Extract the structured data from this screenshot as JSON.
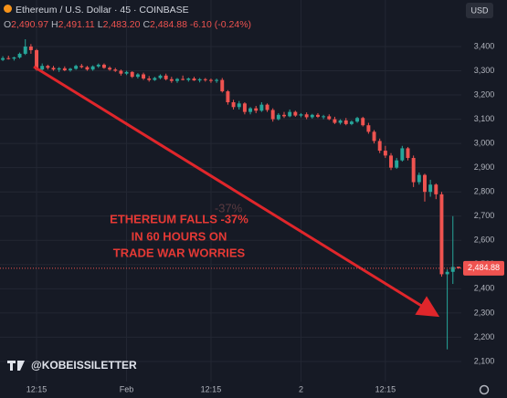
{
  "header": {
    "title": "Ethereum / U.S. Dollar · 45 · COINBASE",
    "ohlc": [
      {
        "key": "O",
        "value": "2,490.97"
      },
      {
        "key": "H",
        "value": "2,491.11"
      },
      {
        "key": "L",
        "value": "2,483.20"
      },
      {
        "key": "C",
        "value": "2,484.88"
      }
    ],
    "change": "-6.10 (-0.24%)",
    "currency_button": "USD"
  },
  "annotation": {
    "lines": [
      "ETHEREUM FALLS -37%",
      "IN 60 HOURS ON",
      "TRADE WAR WORRIES"
    ],
    "ghost": "-37%"
  },
  "watermark": "@KOBEISSILETTER",
  "chart_data": {
    "type": "candlestick",
    "up_color": "#26a69a",
    "down_color": "#ef5350",
    "grid": true,
    "categories": [
      null,
      null,
      null,
      null,
      null,
      null,
      "12:15",
      null,
      null,
      null,
      null,
      null,
      null,
      null,
      null,
      null,
      null,
      null,
      null,
      null,
      null,
      null,
      "Feb",
      null,
      null,
      null,
      null,
      null,
      null,
      null,
      null,
      null,
      null,
      null,
      null,
      null,
      null,
      "12:15",
      null,
      null,
      null,
      null,
      null,
      null,
      null,
      null,
      null,
      null,
      null,
      null,
      null,
      null,
      null,
      "2",
      null,
      null,
      null,
      null,
      null,
      null,
      null,
      null,
      null,
      null,
      null,
      null,
      null,
      null,
      "12:15",
      null,
      null,
      null,
      null,
      null,
      null,
      null,
      null,
      null,
      null,
      null,
      null,
      null
    ],
    "open": [
      3345,
      3352,
      3350,
      3355,
      3370,
      3400,
      3385,
      3305,
      3320,
      3312,
      3305,
      3310,
      3302,
      3308,
      3320,
      3315,
      3305,
      3318,
      3325,
      3312,
      3305,
      3300,
      3288,
      3295,
      3275,
      3285,
      3268,
      3262,
      3270,
      3280,
      3265,
      3258,
      3266,
      3262,
      3268,
      3260,
      3265,
      3262,
      3258,
      3262,
      3215,
      3170,
      3150,
      3165,
      3130,
      3145,
      3135,
      3160,
      3138,
      3100,
      3118,
      3112,
      3130,
      3115,
      3120,
      3108,
      3118,
      3110,
      3112,
      3100,
      3085,
      3095,
      3080,
      3090,
      3105,
      3075,
      3048,
      3010,
      2970,
      2950,
      2900,
      2930,
      2980,
      2940,
      2840,
      2870,
      2800,
      2830,
      2790,
      2460,
      2470,
      2490.97
    ],
    "high": [
      3360,
      3362,
      3358,
      3375,
      3430,
      3410,
      3390,
      3330,
      3325,
      3320,
      3315,
      3318,
      3312,
      3325,
      3328,
      3320,
      3322,
      3330,
      3330,
      3318,
      3312,
      3305,
      3300,
      3298,
      3290,
      3292,
      3278,
      3275,
      3285,
      3288,
      3275,
      3270,
      3280,
      3272,
      3275,
      3270,
      3270,
      3268,
      3268,
      3270,
      3220,
      3180,
      3175,
      3170,
      3150,
      3155,
      3170,
      3165,
      3145,
      3125,
      3130,
      3140,
      3135,
      3125,
      3128,
      3122,
      3125,
      3118,
      3120,
      3110,
      3100,
      3105,
      3095,
      3110,
      3110,
      3085,
      3055,
      3020,
      2990,
      2960,
      2940,
      2990,
      2985,
      2950,
      2880,
      2875,
      2850,
      2835,
      2800,
      2480,
      2700,
      2491.11
    ],
    "low": [
      3340,
      3346,
      3342,
      3350,
      3365,
      3370,
      3300,
      3300,
      3305,
      3300,
      3295,
      3298,
      3296,
      3304,
      3310,
      3300,
      3300,
      3312,
      3308,
      3300,
      3295,
      3280,
      3282,
      3270,
      3268,
      3262,
      3255,
      3258,
      3265,
      3260,
      3250,
      3250,
      3260,
      3255,
      3258,
      3252,
      3255,
      3250,
      3250,
      3210,
      3160,
      3140,
      3140,
      3120,
      3120,
      3125,
      3130,
      3130,
      3090,
      3095,
      3105,
      3108,
      3110,
      3108,
      3100,
      3102,
      3105,
      3100,
      3096,
      3080,
      3078,
      3075,
      3075,
      3085,
      3070,
      3040,
      3000,
      2960,
      2940,
      2890,
      2895,
      2925,
      2930,
      2820,
      2830,
      2760,
      2780,
      2770,
      2450,
      2150,
      2420,
      2483.2
    ],
    "close": [
      3352,
      3350,
      3355,
      3370,
      3400,
      3385,
      3305,
      3320,
      3312,
      3305,
      3310,
      3302,
      3308,
      3320,
      3315,
      3305,
      3318,
      3325,
      3312,
      3305,
      3300,
      3288,
      3295,
      3275,
      3285,
      3268,
      3262,
      3270,
      3280,
      3265,
      3258,
      3266,
      3262,
      3268,
      3260,
      3265,
      3262,
      3258,
      3262,
      3215,
      3170,
      3150,
      3165,
      3130,
      3145,
      3135,
      3160,
      3138,
      3100,
      3118,
      3112,
      3130,
      3115,
      3120,
      3108,
      3118,
      3110,
      3112,
      3100,
      3085,
      3095,
      3080,
      3090,
      3105,
      3075,
      3048,
      3010,
      2970,
      2950,
      2900,
      2930,
      2980,
      2940,
      2840,
      2870,
      2800,
      2830,
      2790,
      2460,
      2470,
      2490,
      2484.88
    ],
    "ylim": [
      2017,
      3592
    ],
    "yticks": [
      {
        "value": 2100,
        "label": "2,100"
      },
      {
        "value": 2200,
        "label": "2,200"
      },
      {
        "value": 2300,
        "label": "2,300"
      },
      {
        "value": 2400,
        "label": "2,400"
      },
      {
        "value": 2500,
        "label": "2,500"
      },
      {
        "value": 2600,
        "label": "2,600"
      },
      {
        "value": 2700,
        "label": "2,700"
      },
      {
        "value": 2800,
        "label": "2,800"
      },
      {
        "value": 2900,
        "label": "2,900"
      },
      {
        "value": 3000,
        "label": "3,000"
      },
      {
        "value": 3100,
        "label": "3,100"
      },
      {
        "value": 3200,
        "label": "3,200"
      },
      {
        "value": 3300,
        "label": "3,300"
      },
      {
        "value": 3400,
        "label": "3,400"
      }
    ],
    "price_tag": {
      "value": 2484.88,
      "label": "2,484.88"
    }
  }
}
